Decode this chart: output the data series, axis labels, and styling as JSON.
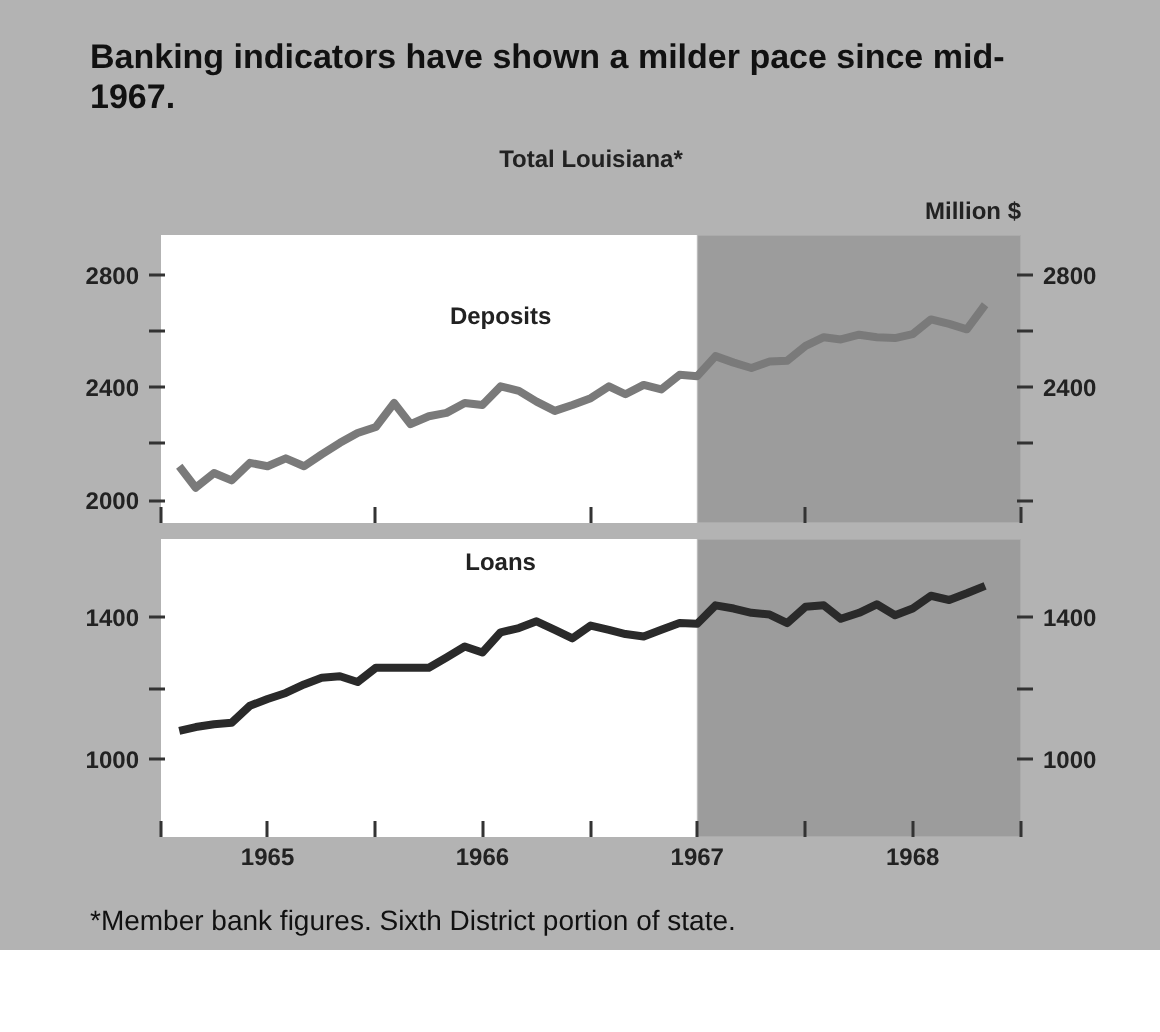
{
  "chart_data": [
    {
      "type": "line",
      "title": "Banking indicators have shown a milder pace since mid-1967.",
      "subtitle": "Total Louisiana*",
      "y2label": "Million $",
      "x": [
        "1965-02",
        "1965-03",
        "1965-04",
        "1965-05",
        "1965-06",
        "1965-07",
        "1965-08",
        "1965-09",
        "1965-10",
        "1965-11",
        "1965-12",
        "1966-01",
        "1966-02",
        "1966-03",
        "1966-04",
        "1966-05",
        "1966-06",
        "1966-07",
        "1966-08",
        "1966-09",
        "1966-10",
        "1966-11",
        "1966-12",
        "1967-01",
        "1967-02",
        "1967-03",
        "1967-04",
        "1967-05",
        "1967-06",
        "1967-07",
        "1967-08",
        "1967-09",
        "1967-10",
        "1967-11",
        "1967-12",
        "1968-01",
        "1968-02",
        "1968-03",
        "1968-04",
        "1968-05",
        "1968-06",
        "1968-07",
        "1968-08",
        "1968-09",
        "1968-10",
        "1968-11"
      ],
      "series": [
        {
          "name": "Deposits",
          "color": "#7a7a7a",
          "values": [
            2121,
            2045,
            2097,
            2071,
            2133,
            2121,
            2149,
            2121,
            2163,
            2204,
            2239,
            2260,
            2345,
            2270,
            2298,
            2310,
            2345,
            2338,
            2404,
            2388,
            2350,
            2317,
            2338,
            2362,
            2404,
            2376,
            2409,
            2393,
            2445,
            2440,
            2511,
            2488,
            2469,
            2492,
            2495,
            2547,
            2578,
            2570,
            2587,
            2578,
            2575,
            2589,
            2641,
            2625,
            2606,
            2693
          ]
        }
      ],
      "xlim": [
        "1965-01",
        "1969-01"
      ],
      "xticks": [
        {
          "value": "1965-01",
          "label": null
        },
        {
          "value": "1966-01",
          "label": null
        },
        {
          "value": "1967-01",
          "label": null
        },
        {
          "value": "1968-01",
          "label": null
        },
        {
          "value": "1969-01",
          "label": null
        }
      ],
      "ylim": [
        1920,
        2940
      ],
      "yticks": [
        {
          "value": 2000,
          "label": "2000"
        },
        {
          "value": 2200,
          "label": null
        },
        {
          "value": 2400,
          "label": "2400"
        },
        {
          "value": 2600,
          "label": null
        },
        {
          "value": 2800,
          "label": "2800"
        }
      ],
      "y2lim": [
        1920,
        2940
      ],
      "y2ticks": [
        {
          "value": 2000,
          "label": null
        },
        {
          "value": 2200,
          "label": null
        },
        {
          "value": 2400,
          "label": "2400"
        },
        {
          "value": 2600,
          "label": null
        },
        {
          "value": 2800,
          "label": "2800"
        }
      ],
      "bands": [
        {
          "axis": "x",
          "from": "1967-07",
          "to": "1969-01",
          "color": "#9c9c9c"
        }
      ],
      "tick_labels": "y",
      "grid": false,
      "legend": false,
      "line_style": "solid",
      "marker": "none"
    },
    {
      "type": "line",
      "x": [
        "1965-02",
        "1965-03",
        "1965-04",
        "1965-05",
        "1965-06",
        "1965-07",
        "1965-08",
        "1965-09",
        "1965-10",
        "1965-11",
        "1965-12",
        "1966-01",
        "1966-02",
        "1966-03",
        "1966-04",
        "1966-05",
        "1966-06",
        "1966-07",
        "1966-08",
        "1966-09",
        "1966-10",
        "1966-11",
        "1966-12",
        "1967-01",
        "1967-02",
        "1967-03",
        "1967-04",
        "1967-05",
        "1967-06",
        "1967-07",
        "1967-08",
        "1967-09",
        "1967-10",
        "1967-11",
        "1967-12",
        "1968-01",
        "1968-02",
        "1968-03",
        "1968-04",
        "1968-05",
        "1968-06",
        "1968-07",
        "1968-08",
        "1968-09",
        "1968-10",
        "1968-11"
      ],
      "series": [
        {
          "name": "Loans",
          "color": "#2a2a2a",
          "values": [
            1079,
            1090,
            1098,
            1102,
            1150,
            1169,
            1186,
            1210,
            1229,
            1233,
            1217,
            1257,
            1257,
            1257,
            1257,
            1286,
            1317,
            1300,
            1357,
            1369,
            1388,
            1364,
            1340,
            1376,
            1364,
            1352,
            1345,
            1364,
            1383,
            1381,
            1433,
            1424,
            1412,
            1407,
            1383,
            1429,
            1433,
            1395,
            1412,
            1436,
            1405,
            1424,
            1460,
            1448,
            1467,
            1488
          ]
        }
      ],
      "xlim": [
        "1965-01",
        "1969-01"
      ],
      "xticks": [
        {
          "value": "1965-01",
          "label": null
        },
        {
          "value": "1965-07",
          "label": "1965"
        },
        {
          "value": "1966-01",
          "label": null
        },
        {
          "value": "1966-07",
          "label": "1966"
        },
        {
          "value": "1967-01",
          "label": null
        },
        {
          "value": "1967-07",
          "label": "1967"
        },
        {
          "value": "1968-01",
          "label": null
        },
        {
          "value": "1968-07",
          "label": "1968"
        },
        {
          "value": "1969-01",
          "label": null
        }
      ],
      "ylim": [
        780,
        1620
      ],
      "yticks": [
        {
          "value": 1000,
          "label": "1000"
        },
        {
          "value": 1200,
          "label": null
        },
        {
          "value": 1400,
          "label": "1400"
        }
      ],
      "y2lim": [
        780,
        1620
      ],
      "y2ticks": [
        {
          "value": 1000,
          "label": "1000"
        },
        {
          "value": 1200,
          "label": null
        },
        {
          "value": 1400,
          "label": "1400"
        }
      ],
      "bands": [
        {
          "axis": "x",
          "from": "1967-07",
          "to": "1969-01",
          "color": "#9c9c9c"
        }
      ],
      "annotations": [
        "*Member bank figures. Sixth District portion of state."
      ],
      "grid": false,
      "legend": false,
      "line_style": "solid",
      "marker": "none"
    }
  ]
}
